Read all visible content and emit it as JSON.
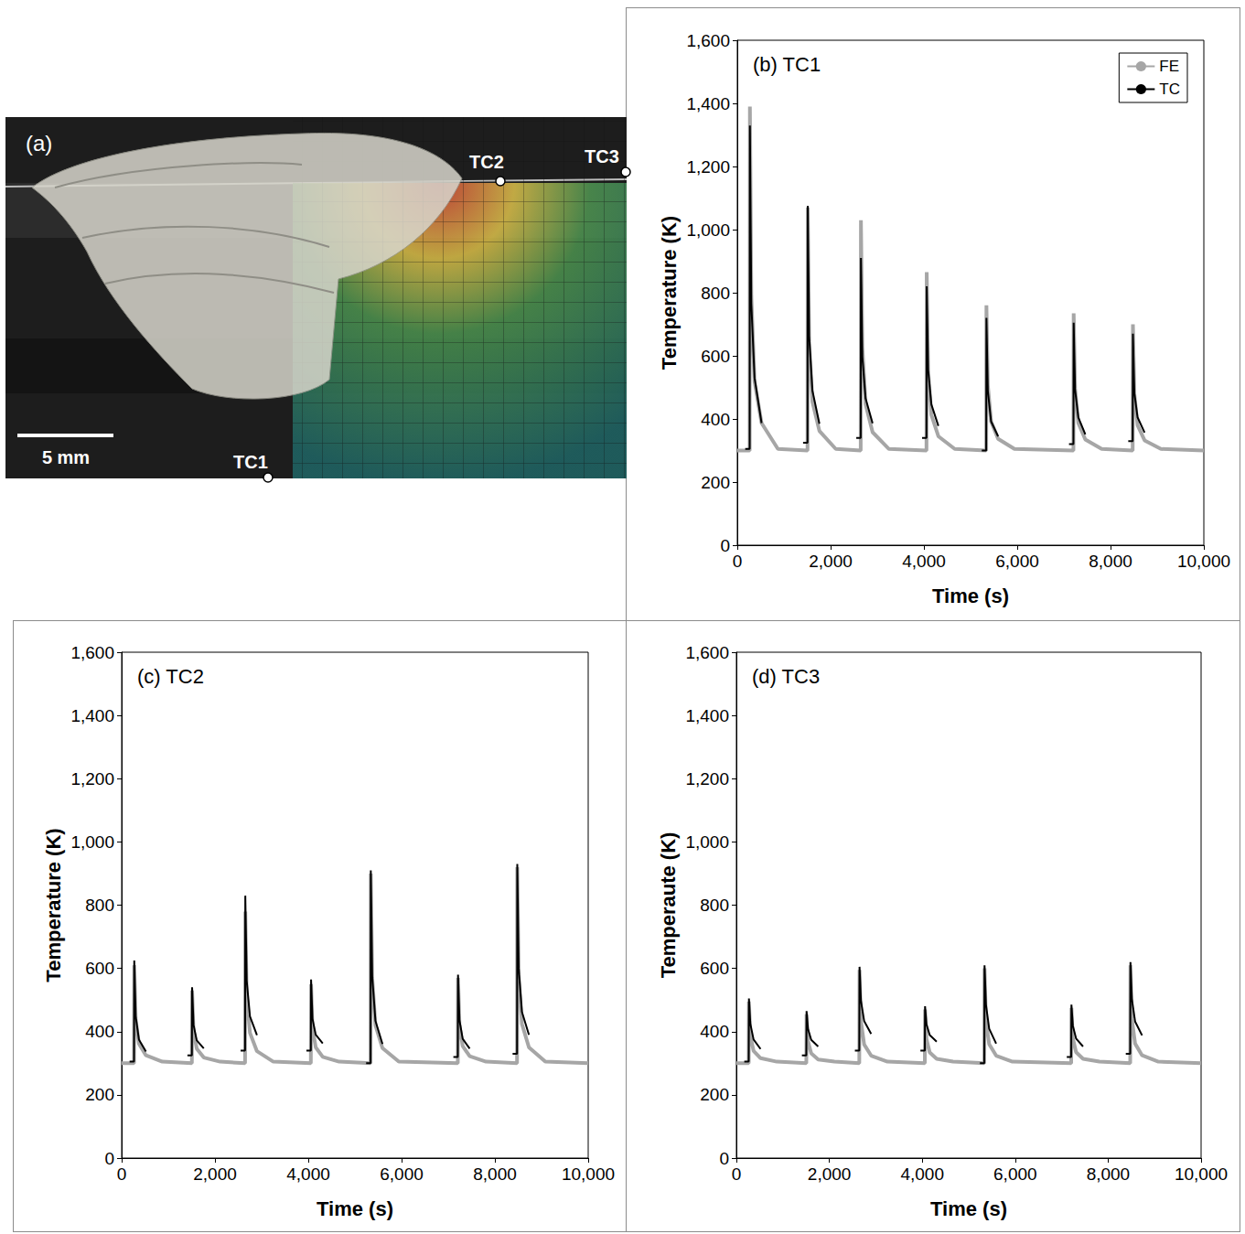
{
  "panel_a": {
    "label": "(a)",
    "scale_bar": "5 mm",
    "markers": [
      "TC1",
      "TC2",
      "TC3"
    ]
  },
  "chart_data": [
    {
      "type": "line",
      "title": "(b) TC1",
      "x_label": "Time (s)",
      "y_label": "Temperature (K)",
      "xlim": [
        0,
        10000
      ],
      "xticks": [
        0,
        2000,
        4000,
        6000,
        8000,
        10000
      ],
      "ylim": [
        0,
        1600
      ],
      "yticks": [
        0,
        200,
        400,
        600,
        800,
        1000,
        1200,
        1400,
        1600
      ],
      "grid": false,
      "legend": "upper right",
      "series": [
        {
          "name": "FE",
          "color": "#a6a6a6",
          "x": [
            0,
            265,
            270,
            300,
            370,
            520,
            870,
            1505,
            1510,
            1540,
            1610,
            1760,
            2110,
            2645,
            2650,
            2680,
            2750,
            2900,
            3250,
            4055,
            4060,
            4090,
            4160,
            4310,
            4660,
            5335,
            5340,
            5370,
            5440,
            5590,
            5940,
            7205,
            7210,
            7240,
            7310,
            7460,
            7810,
            8475,
            8480,
            8510,
            8580,
            8730,
            9080,
            10000
          ],
          "values": [
            300,
            300,
            1390,
            790,
            518,
            387,
            305,
            300,
            1070,
            646,
            454,
            362,
            305,
            300,
            1030,
            628,
            446,
            358,
            305,
            300,
            865,
            554,
            413,
            345,
            305,
            300,
            760,
            507,
            392,
            337,
            305,
            300,
            735,
            496,
            387,
            335,
            305,
            300,
            700,
            480,
            380,
            332,
            305,
            300
          ]
        },
        {
          "name": "TC",
          "color": "#000000",
          "x": [
            170,
            265,
            270,
            300,
            370,
            520,
            530,
            1410,
            1505,
            1510,
            1540,
            1610,
            1760,
            1770,
            2550,
            2645,
            2650,
            2680,
            2750,
            2900,
            2910,
            3960,
            4055,
            4060,
            4090,
            4160,
            4310,
            4320,
            5240,
            5335,
            5340,
            5370,
            5440,
            5590,
            5600,
            7110,
            7205,
            7210,
            7240,
            7310,
            7460,
            7470,
            8380,
            8475,
            8480,
            8510,
            8580,
            8730
          ],
          "values": [
            305,
            305,
            1330,
            766,
            530,
            387,
            null,
            325,
            325,
            1075,
            663,
            490,
            385,
            null,
            340,
            340,
            910,
            597,
            465,
            386,
            null,
            340,
            340,
            820,
            556,
            446,
            378,
            null,
            300,
            300,
            720,
            489,
            392,
            345,
            null,
            320,
            320,
            705,
            493,
            405,
            351,
            null,
            330,
            330,
            670,
            483,
            405,
            357
          ]
        }
      ]
    },
    {
      "type": "line",
      "title": "(c) TC2",
      "x_label": "Time (s)",
      "y_label": "Temperature (K)",
      "xlim": [
        0,
        10000
      ],
      "xticks": [
        0,
        2000,
        4000,
        6000,
        8000,
        10000
      ],
      "ylim": [
        0,
        1600
      ],
      "yticks": [
        0,
        200,
        400,
        600,
        800,
        1000,
        1200,
        1400,
        1600
      ],
      "grid": false,
      "series": [
        {
          "name": "FE",
          "color": "#a6a6a6",
          "x": [
            0,
            265,
            270,
            300,
            370,
            520,
            870,
            1505,
            1510,
            1540,
            1610,
            1760,
            2110,
            2645,
            2650,
            2680,
            2750,
            2900,
            3250,
            4055,
            4060,
            4090,
            4160,
            4310,
            4660,
            5335,
            5340,
            5370,
            5440,
            5590,
            5940,
            7205,
            7210,
            7240,
            7310,
            7460,
            7810,
            8475,
            8480,
            8510,
            8580,
            8730,
            9080,
            10000
          ],
          "values": [
            300,
            300,
            610,
            440,
            362,
            325,
            305,
            300,
            530,
            404,
            346,
            318,
            305,
            300,
            780,
            516,
            396,
            338,
            305,
            300,
            550,
            413,
            350,
            320,
            305,
            300,
            900,
            570,
            420,
            348,
            305,
            300,
            570,
            422,
            354,
            322,
            305,
            300,
            920,
            579,
            424,
            350,
            305,
            300
          ]
        },
        {
          "name": "TC",
          "color": "#000000",
          "x": [
            170,
            265,
            270,
            300,
            370,
            520,
            530,
            1410,
            1505,
            1510,
            1540,
            1610,
            1760,
            1770,
            2550,
            2645,
            2650,
            2680,
            2750,
            2900,
            2910,
            3960,
            4055,
            4060,
            4090,
            4160,
            4310,
            4320,
            5240,
            5335,
            5340,
            5370,
            5440,
            5590,
            5600,
            7110,
            7205,
            7210,
            7240,
            7310,
            7460,
            7470,
            8380,
            8475,
            8480,
            8510,
            8580,
            8730
          ],
          "values": [
            305,
            305,
            625,
            449,
            375,
            337,
            null,
            325,
            325,
            540,
            422,
            372,
            347,
            null,
            340,
            340,
            830,
            561,
            448,
            389,
            null,
            340,
            340,
            565,
            441,
            390,
            363,
            null,
            300,
            300,
            910,
            575,
            434,
            361,
            null,
            320,
            320,
            580,
            437,
            377,
            346,
            null,
            330,
            330,
            930,
            600,
            462,
            390
          ]
        }
      ]
    },
    {
      "type": "line",
      "title": "(d) TC3",
      "x_label": "Time (s)",
      "y_label": "Temperaute (K)",
      "xlim": [
        0,
        10000
      ],
      "xticks": [
        0,
        2000,
        4000,
        6000,
        8000,
        10000
      ],
      "ylim": [
        0,
        1600
      ],
      "yticks": [
        0,
        200,
        400,
        600,
        800,
        1000,
        1200,
        1400,
        1600
      ],
      "grid": false,
      "series": [
        {
          "name": "FE",
          "color": "#a6a6a6",
          "x": [
            0,
            265,
            270,
            300,
            370,
            520,
            870,
            1505,
            1510,
            1540,
            1610,
            1760,
            2110,
            2645,
            2650,
            2680,
            2750,
            2900,
            3250,
            4055,
            4060,
            4090,
            4160,
            4310,
            4660,
            5335,
            5340,
            5370,
            5440,
            5590,
            5940,
            7205,
            7210,
            7240,
            7310,
            7460,
            7810,
            8475,
            8480,
            8510,
            8580,
            8730,
            9080,
            10000
          ],
          "values": [
            300,
            300,
            495,
            388,
            339,
            316,
            305,
            300,
            455,
            370,
            331,
            312,
            305,
            300,
            595,
            433,
            359,
            324,
            305,
            300,
            470,
            377,
            334,
            314,
            305,
            300,
            600,
            435,
            360,
            324,
            305,
            300,
            475,
            379,
            335,
            314,
            305,
            300,
            610,
            440,
            362,
            325,
            305,
            300
          ]
        },
        {
          "name": "TC",
          "color": "#000000",
          "x": [
            170,
            265,
            270,
            300,
            370,
            520,
            530,
            1410,
            1505,
            1510,
            1540,
            1610,
            1760,
            1770,
            2550,
            2645,
            2650,
            2680,
            2750,
            2900,
            2910,
            3960,
            4055,
            4060,
            4090,
            4160,
            4310,
            4320,
            5240,
            5335,
            5340,
            5370,
            5440,
            5590,
            5600,
            7110,
            7205,
            7210,
            7240,
            7310,
            7460,
            7470,
            8380,
            8475,
            8480,
            8510,
            8580,
            8730
          ],
          "values": [
            305,
            305,
            505,
            425,
            375,
            345,
            null,
            325,
            325,
            465,
            409,
            374,
            353,
            null,
            340,
            340,
            605,
            499,
            433,
            393,
            null,
            340,
            340,
            480,
            424,
            389,
            368,
            null,
            300,
            300,
            610,
            486,
            409,
            362,
            null,
            320,
            320,
            485,
            419,
            378,
            353,
            null,
            330,
            330,
            620,
            504,
            432,
            388
          ]
        }
      ]
    }
  ]
}
